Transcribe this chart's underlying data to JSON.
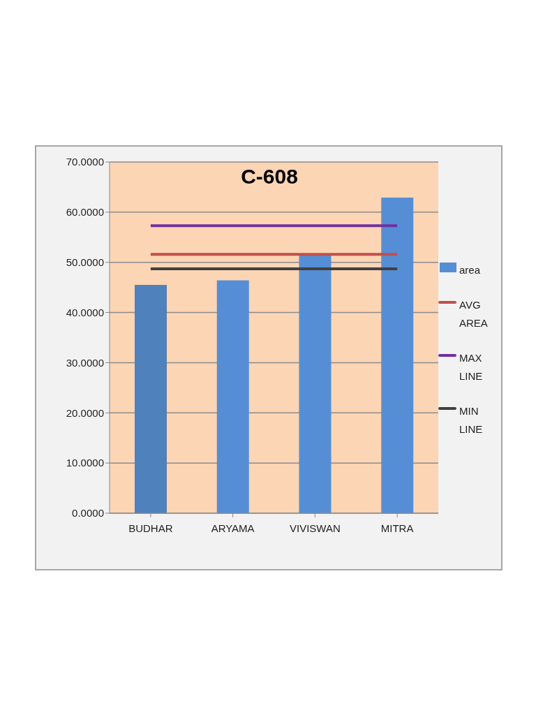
{
  "chart_data": {
    "type": "bar",
    "title": "C-608",
    "categories": [
      "BUDHAR",
      "ARYAMA",
      "VIVISWAN",
      "MITRA"
    ],
    "series": [
      {
        "name": "area",
        "color": "#558ed5",
        "colors": [
          "#4f81bd",
          "#558ed5",
          "#558ed5",
          "#558ed5"
        ],
        "values": [
          45.5,
          46.4,
          51.5,
          62.9
        ]
      },
      {
        "name": "AVG AREA",
        "type": "line",
        "color": "#c0504d",
        "values": [
          51.6,
          51.6,
          51.6,
          51.6
        ]
      },
      {
        "name": "MAX LINE",
        "type": "line",
        "color": "#7030a0",
        "values": [
          57.3,
          57.3,
          57.3,
          57.3
        ]
      },
      {
        "name": "MIN LINE",
        "type": "line",
        "color": "#404040",
        "values": [
          48.7,
          48.7,
          48.7,
          48.7
        ]
      }
    ],
    "ylim": [
      0,
      70
    ],
    "yticks": [
      {
        "value": 0,
        "label": "0.0000"
      },
      {
        "value": 10,
        "label": "10.0000"
      },
      {
        "value": 20,
        "label": "20.0000"
      },
      {
        "value": 30,
        "label": "30.0000"
      },
      {
        "value": 40,
        "label": "40.0000"
      },
      {
        "value": 50,
        "label": "50.0000"
      },
      {
        "value": 60,
        "label": "60.0000"
      },
      {
        "value": 70,
        "label": "70.0000"
      }
    ],
    "grid": "y",
    "legend": "right",
    "marker": "none"
  }
}
